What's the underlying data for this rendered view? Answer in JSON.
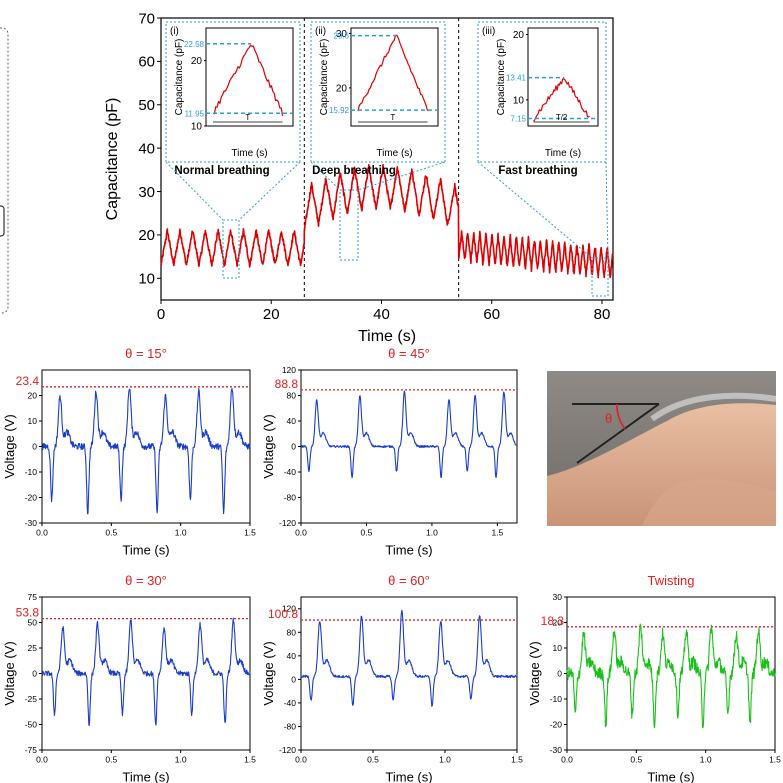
{
  "chart_data": [
    {
      "type": "line",
      "id": "main",
      "xlabel": "Time (s)",
      "ylabel": "Capacitance (pF)",
      "xlim": [
        0,
        82
      ],
      "ylim": [
        5,
        70
      ],
      "xticks": [
        0,
        20,
        40,
        60,
        80
      ],
      "yticks": [
        10,
        20,
        30,
        40,
        50,
        60,
        70
      ],
      "color": "#dd0000",
      "segment_dividers": [
        26,
        54
      ],
      "series": [
        {
          "label": "Normal breathing",
          "x_range": [
            0,
            26
          ],
          "baseline": 13,
          "amplitude": 8,
          "period": 2.3
        },
        {
          "label": "Deep breathing",
          "x_range": [
            26,
            54
          ],
          "baseline": 21,
          "amplitude": 10,
          "period": 2.6
        },
        {
          "label": "Fast breathing",
          "x_range": [
            54,
            82
          ],
          "baseline": 10,
          "amplitude": 7,
          "period": 1.1
        }
      ],
      "annotations": [
        "Normal breathing",
        "Deep breathing",
        "Fast breathing"
      ],
      "insets": [
        {
          "tag": "(i)",
          "xlabel": "Time (s)",
          "ylabel": "Capacitance (pF)",
          "ylim": [
            10,
            25
          ],
          "yticks": [
            10,
            20
          ],
          "peak": 22.58,
          "trough": 11.95,
          "peak_label": "22.58",
          "trough_label": "11.95",
          "period_label": "T"
        },
        {
          "tag": "(ii)",
          "xlabel": "Time (s)",
          "ylabel": "Capacitance (pF)",
          "ylim": [
            13,
            31
          ],
          "yticks": [
            20,
            30
          ],
          "peak": 29.6,
          "trough": 15.92,
          "peak_label": "29.6",
          "trough_label": "15.92",
          "period_label": "T"
        },
        {
          "tag": "(iii)",
          "xlabel": "Time (s)",
          "ylabel": "Capacitance (pF)",
          "ylim": [
            6,
            21
          ],
          "yticks": [
            10,
            20
          ],
          "peak": 13.41,
          "trough": 7.15,
          "peak_label": "13.41",
          "trough_label": "7.15",
          "period_label": "T/2"
        }
      ]
    },
    {
      "type": "line",
      "id": "v15",
      "title": "θ = 15°",
      "xlabel": "Time (s)",
      "ylabel": "Voltage (V)",
      "xlim": [
        0,
        1.5
      ],
      "ylim": [
        -30,
        30
      ],
      "xticks": [
        0.0,
        0.5,
        1.0,
        1.5
      ],
      "yticks": [
        -30,
        -20,
        -10,
        0,
        10,
        20
      ],
      "xtick_labels": [
        "0.0",
        "0.5",
        "1.0",
        "1.5"
      ],
      "threshold": 23.4,
      "threshold_label": "23.4",
      "color": "#1a3ec8",
      "peaks": [
        0.13,
        0.39,
        0.63,
        0.89,
        1.13,
        1.37
      ],
      "peak_value": 23,
      "trough_value": -26,
      "noise": 2.5
    },
    {
      "type": "line",
      "id": "v45",
      "title": "θ = 45°",
      "xlabel": "Time (s)",
      "ylabel": "Voltage (V)",
      "xlim": [
        0,
        1.65
      ],
      "ylim": [
        -120,
        120
      ],
      "xticks": [
        0.0,
        0.5,
        1.0,
        1.5
      ],
      "yticks": [
        -120,
        -80,
        -40,
        0,
        40,
        80,
        120
      ],
      "xtick_labels": [
        "0.0",
        "0.5",
        "1.0",
        "1.5"
      ],
      "threshold": 88.8,
      "threshold_label": "88.8",
      "color": "#1a3ec8",
      "peaks": [
        0.12,
        0.45,
        0.79,
        1.13,
        1.33,
        1.55
      ],
      "peak_value": 85,
      "trough_value": -50,
      "noise": 3
    },
    {
      "type": "line",
      "id": "v30",
      "title": "θ = 30°",
      "xlabel": "Time (s)",
      "ylabel": "Voltage (V)",
      "xlim": [
        0,
        1.5
      ],
      "ylim": [
        -75,
        75
      ],
      "xticks": [
        0.0,
        0.5,
        1.0,
        1.5
      ],
      "yticks": [
        -75,
        -50,
        -25,
        0,
        25,
        50,
        75
      ],
      "xtick_labels": [
        "0.0",
        "0.5",
        "1.0",
        "1.5"
      ],
      "threshold": 53.8,
      "threshold_label": "53.8",
      "color": "#1a3ec8",
      "peaks": [
        0.15,
        0.4,
        0.64,
        0.88,
        1.14,
        1.38
      ],
      "peak_value": 52,
      "trough_value": -50,
      "noise": 5
    },
    {
      "type": "line",
      "id": "v60",
      "title": "θ = 60°",
      "xlabel": "Time (s)",
      "ylabel": "Voltage (V)",
      "xlim": [
        0,
        1.5
      ],
      "ylim": [
        -120,
        140
      ],
      "xticks": [
        0.0,
        0.5,
        1.0,
        1.5
      ],
      "yticks": [
        -120,
        -80,
        -40,
        0,
        40,
        80,
        120
      ],
      "xtick_labels": [
        "0.0",
        "0.5",
        "1.0",
        "1.5"
      ],
      "threshold": 100.8,
      "threshold_label": "100.8",
      "color": "#1a3ec8",
      "peaks": [
        0.13,
        0.42,
        0.7,
        0.97,
        1.24
      ],
      "peak_value": 110,
      "trough_value": -50,
      "noise": 4,
      "baseline": 5
    },
    {
      "type": "line",
      "id": "twist",
      "title": "Twisting",
      "xlabel": "Time (s)",
      "ylabel": "Voltage (V)",
      "xlim": [
        0,
        1.5
      ],
      "ylim": [
        -30,
        30
      ],
      "xticks": [
        0.0,
        0.5,
        1.0,
        1.5
      ],
      "yticks": [
        -30,
        -20,
        -10,
        0,
        10,
        20,
        30
      ],
      "xtick_labels": [
        "0.0",
        "0.5",
        "1.0",
        "1.5"
      ],
      "threshold": 18.3,
      "threshold_label": "18.3",
      "color": "#19c019",
      "peaks": [
        0.12,
        0.34,
        0.53,
        0.69,
        0.86,
        1.04,
        1.22,
        1.38
      ],
      "peak_value": 18,
      "trough_value": -20,
      "noise": 5
    }
  ],
  "photo": {
    "angle_label": "θ"
  }
}
